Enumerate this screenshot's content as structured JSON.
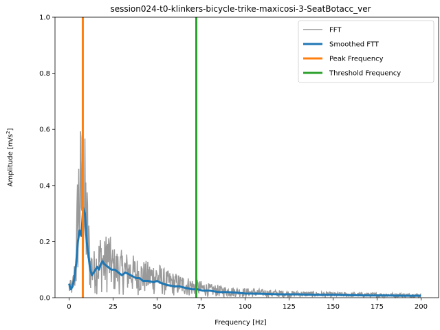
{
  "chart_data": {
    "type": "line",
    "title": "session024-t0-klinkers-bicycle-trike-maxicosi-3-SeatBotacc_ver",
    "xlabel": "Frequency [Hz]",
    "ylabel": "Amplitude [m/s",
    "ylabel_sup": "2",
    "ylabel_close": "]",
    "xlim": [
      -8,
      210
    ],
    "ylim": [
      0,
      1.0
    ],
    "xticks": [
      0,
      25,
      50,
      75,
      100,
      125,
      150,
      175,
      200
    ],
    "xtick_labels": [
      "0",
      "25",
      "50",
      "75",
      "100",
      "125",
      "150",
      "175",
      "200"
    ],
    "yticks": [
      0.0,
      0.2,
      0.4,
      0.6,
      0.8,
      1.0
    ],
    "ytick_labels": [
      "0.0",
      "0.2",
      "0.4",
      "0.6",
      "0.8",
      "1.0"
    ],
    "grid": false,
    "legend_position": "top-right",
    "series": [
      {
        "name": "FFT",
        "color": "#999999",
        "envelope": [
          [
            0,
            0.06
          ],
          [
            2,
            0.07
          ],
          [
            4,
            0.2
          ],
          [
            5,
            0.55
          ],
          [
            6,
            0.63
          ],
          [
            7,
            0.64
          ],
          [
            8,
            0.5
          ],
          [
            9,
            0.58
          ],
          [
            10,
            0.45
          ],
          [
            12,
            0.2
          ],
          [
            14,
            0.17
          ],
          [
            16,
            0.2
          ],
          [
            18,
            0.24
          ],
          [
            20,
            0.2
          ],
          [
            22,
            0.27
          ],
          [
            24,
            0.2
          ],
          [
            26,
            0.18
          ],
          [
            30,
            0.17
          ],
          [
            35,
            0.16
          ],
          [
            40,
            0.14
          ],
          [
            45,
            0.13
          ],
          [
            50,
            0.13
          ],
          [
            55,
            0.1
          ],
          [
            60,
            0.09
          ],
          [
            65,
            0.08
          ],
          [
            70,
            0.07
          ],
          [
            75,
            0.06
          ],
          [
            80,
            0.05
          ],
          [
            90,
            0.04
          ],
          [
            100,
            0.035
          ],
          [
            110,
            0.03
          ],
          [
            125,
            0.025
          ],
          [
            150,
            0.02
          ],
          [
            175,
            0.018
          ],
          [
            200,
            0.015
          ]
        ]
      },
      {
        "name": "Smoothed FTT",
        "color": "#1f77b4",
        "values": [
          [
            0,
            0.05
          ],
          [
            1,
            0.03
          ],
          [
            2,
            0.04
          ],
          [
            3,
            0.07
          ],
          [
            4,
            0.12
          ],
          [
            5,
            0.2
          ],
          [
            6,
            0.24
          ],
          [
            7,
            0.22
          ],
          [
            8,
            0.32
          ],
          [
            9,
            0.3
          ],
          [
            10,
            0.2
          ],
          [
            11,
            0.15
          ],
          [
            12,
            0.1
          ],
          [
            13,
            0.08
          ],
          [
            14,
            0.09
          ],
          [
            15,
            0.1
          ],
          [
            16,
            0.11
          ],
          [
            17,
            0.1
          ],
          [
            18,
            0.12
          ],
          [
            19,
            0.13
          ],
          [
            20,
            0.12
          ],
          [
            22,
            0.11
          ],
          [
            24,
            0.1
          ],
          [
            26,
            0.1
          ],
          [
            28,
            0.09
          ],
          [
            30,
            0.08
          ],
          [
            32,
            0.09
          ],
          [
            35,
            0.08
          ],
          [
            38,
            0.07
          ],
          [
            40,
            0.07
          ],
          [
            42,
            0.06
          ],
          [
            45,
            0.06
          ],
          [
            48,
            0.055
          ],
          [
            50,
            0.06
          ],
          [
            53,
            0.05
          ],
          [
            56,
            0.045
          ],
          [
            60,
            0.04
          ],
          [
            63,
            0.04
          ],
          [
            66,
            0.035
          ],
          [
            70,
            0.03
          ],
          [
            73,
            0.03
          ],
          [
            76,
            0.025
          ],
          [
            80,
            0.025
          ],
          [
            85,
            0.02
          ],
          [
            90,
            0.02
          ],
          [
            95,
            0.018
          ],
          [
            100,
            0.015
          ],
          [
            110,
            0.014
          ],
          [
            120,
            0.012
          ],
          [
            130,
            0.012
          ],
          [
            140,
            0.01
          ],
          [
            150,
            0.01
          ],
          [
            160,
            0.009
          ],
          [
            170,
            0.008
          ],
          [
            180,
            0.008
          ],
          [
            190,
            0.007
          ],
          [
            200,
            0.007
          ]
        ]
      },
      {
        "name": "Peak Frequency",
        "color": "#ff7f0e",
        "x": 7.8
      },
      {
        "name": "Threshold Frequency",
        "color": "#2ca02c",
        "x": 72.3
      }
    ]
  }
}
